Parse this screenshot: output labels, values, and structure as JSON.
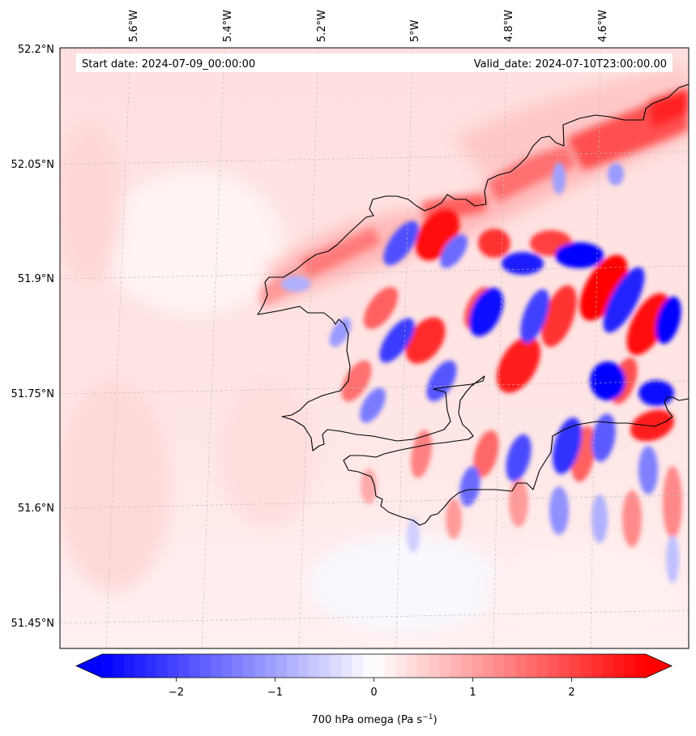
{
  "header": {
    "start_date": "Start date: 2024-07-09_00:00:00",
    "valid_date": "Valid_date: 2024-07-10T23:00:00.00"
  },
  "map": {
    "lon_labels": [
      "5.6°W",
      "5.4°W",
      "5.2°W",
      "5°W",
      "4.8°W",
      "4.6°W"
    ],
    "lat_labels": [
      "52.2°N",
      "52.05°N",
      "51.9°N",
      "51.75°N",
      "51.6°N",
      "51.45°N"
    ],
    "gridlines": true,
    "field": "700 hPa omega",
    "coastline_color": "#000000"
  },
  "colorbar": {
    "label_main": "700 hPa omega (Pa s",
    "label_exp": "−1",
    "label_close": ")",
    "ticks": [
      "−2",
      "−1",
      "0",
      "1",
      "2"
    ],
    "tick_values": [
      -2,
      -1,
      0,
      1,
      2
    ],
    "range": [
      -2.75,
      2.75
    ],
    "extend": "both",
    "cmap_colors": {
      "low": "#0000ff",
      "mid": "#ffffff",
      "high": "#ff0000"
    }
  }
}
